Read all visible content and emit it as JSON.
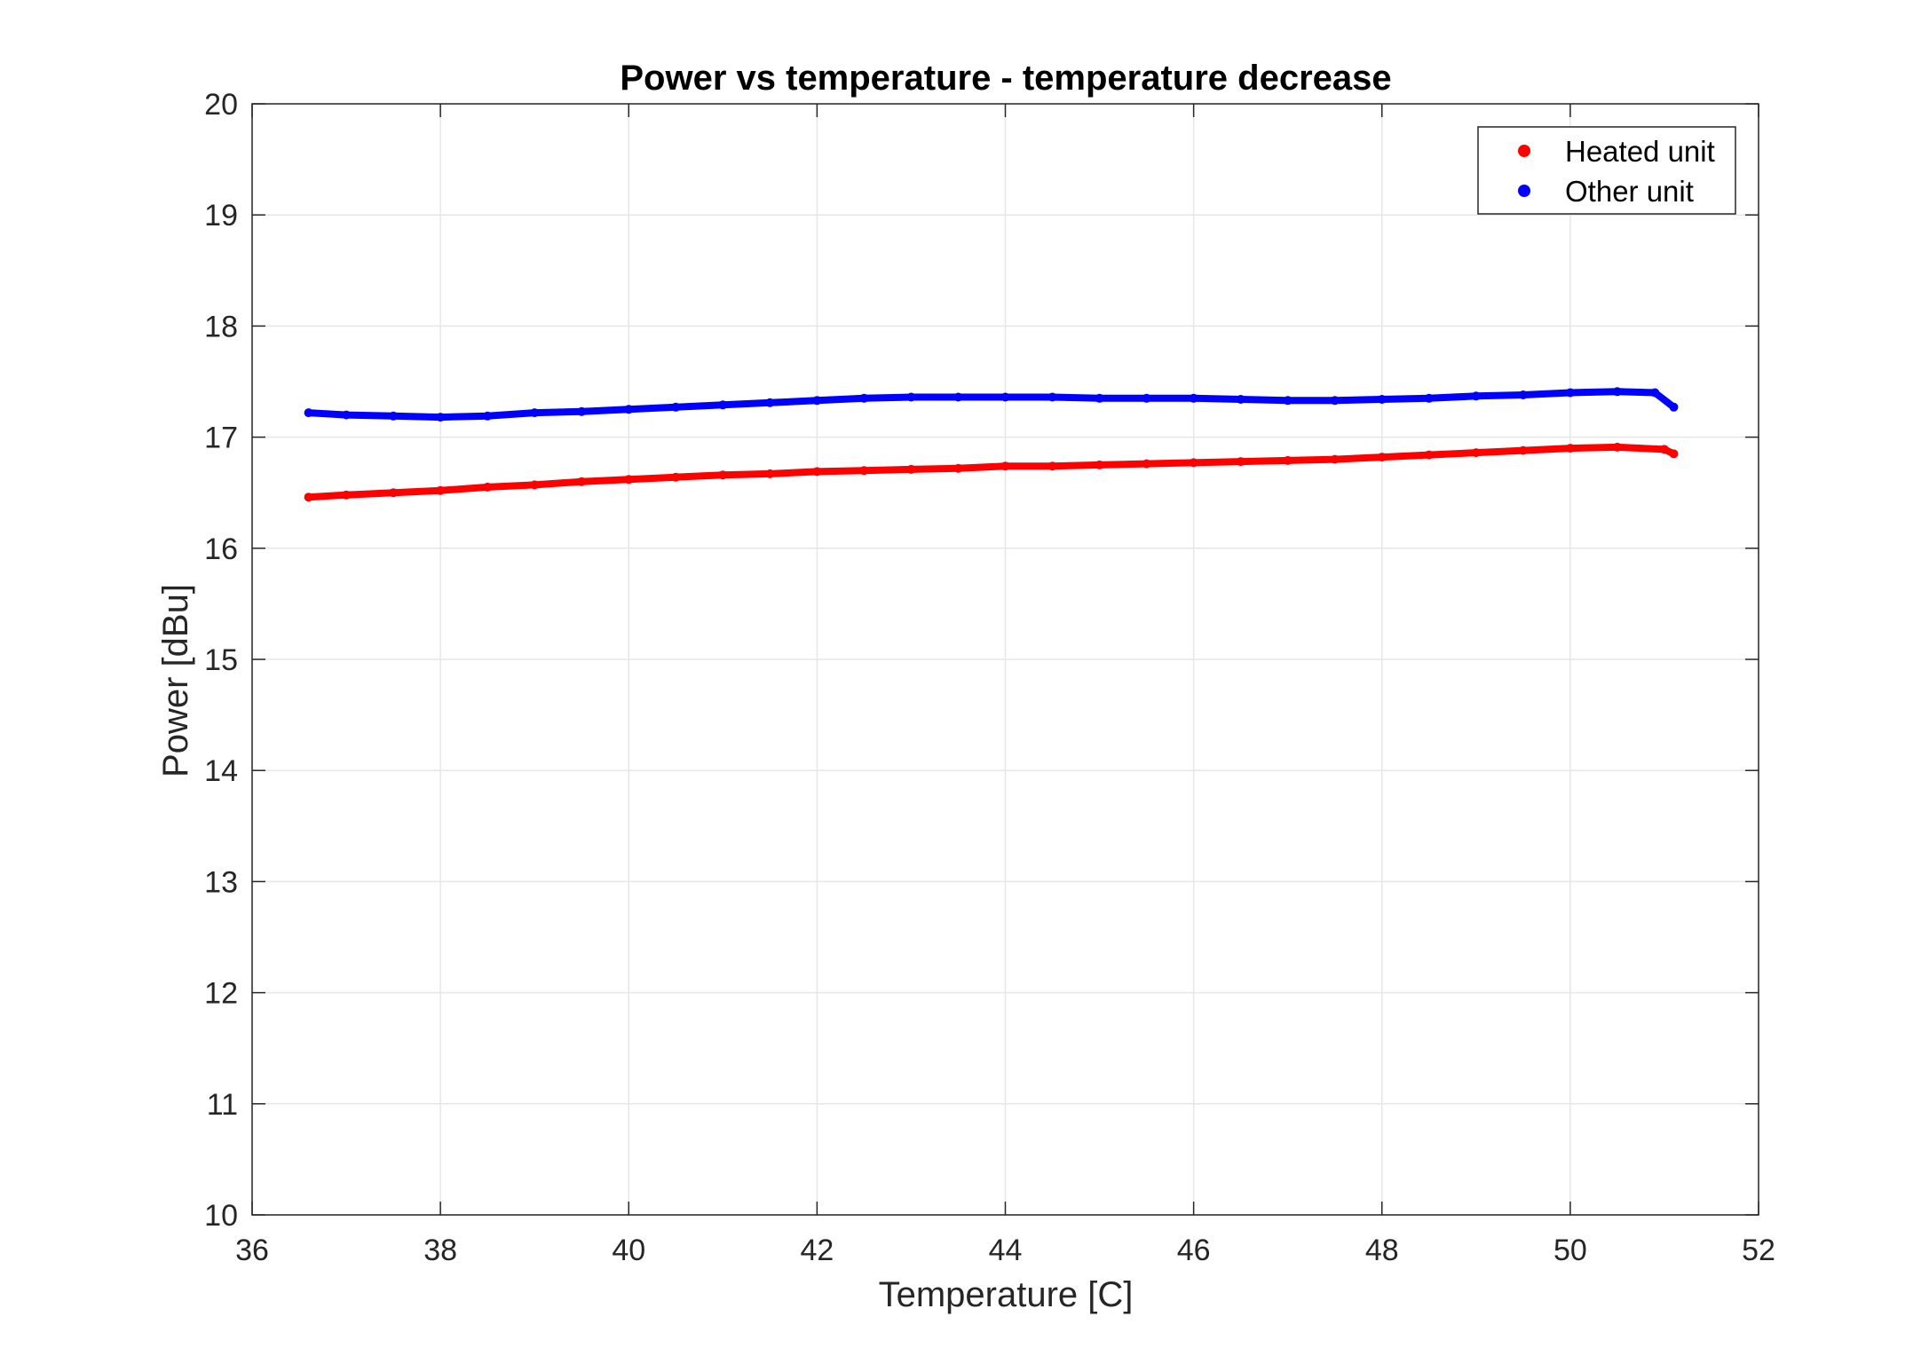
{
  "chart_data": {
    "type": "scatter",
    "title": "Power vs temperature - temperature decrease",
    "xlabel": "Temperature [C]",
    "ylabel": "Power [dBu]",
    "xlim": [
      36,
      52
    ],
    "ylim": [
      10,
      20
    ],
    "xticks": [
      "36",
      "38",
      "40",
      "42",
      "44",
      "46",
      "48",
      "50",
      "52"
    ],
    "yticks": [
      "10",
      "11",
      "12",
      "13",
      "14",
      "15",
      "16",
      "17",
      "18",
      "19",
      "20"
    ],
    "grid": true,
    "legend_position": "top-right",
    "series": [
      {
        "name": "Heated unit",
        "color": "#ff0000",
        "x": [
          36.6,
          37.0,
          37.5,
          38.0,
          38.5,
          39.0,
          39.5,
          40.0,
          40.5,
          41.0,
          41.5,
          42.0,
          42.5,
          43.0,
          43.5,
          44.0,
          44.5,
          45.0,
          45.5,
          46.0,
          46.5,
          47.0,
          47.5,
          48.0,
          48.5,
          49.0,
          49.5,
          50.0,
          50.5,
          51.0,
          51.1
        ],
        "y": [
          16.46,
          16.48,
          16.5,
          16.52,
          16.55,
          16.57,
          16.6,
          16.62,
          16.64,
          16.66,
          16.67,
          16.69,
          16.7,
          16.71,
          16.72,
          16.74,
          16.74,
          16.75,
          16.76,
          16.77,
          16.78,
          16.79,
          16.8,
          16.82,
          16.84,
          16.86,
          16.88,
          16.9,
          16.91,
          16.89,
          16.85
        ]
      },
      {
        "name": "Other unit",
        "color": "#0000ff",
        "x": [
          36.6,
          37.0,
          37.5,
          38.0,
          38.5,
          39.0,
          39.5,
          40.0,
          40.5,
          41.0,
          41.5,
          42.0,
          42.5,
          43.0,
          43.5,
          44.0,
          44.5,
          45.0,
          45.5,
          46.0,
          46.5,
          47.0,
          47.5,
          48.0,
          48.5,
          49.0,
          49.5,
          50.0,
          50.5,
          50.9,
          51.1
        ],
        "y": [
          17.22,
          17.2,
          17.19,
          17.18,
          17.19,
          17.22,
          17.23,
          17.25,
          17.27,
          17.29,
          17.31,
          17.33,
          17.35,
          17.36,
          17.36,
          17.36,
          17.36,
          17.35,
          17.35,
          17.35,
          17.34,
          17.33,
          17.33,
          17.34,
          17.35,
          17.37,
          17.38,
          17.4,
          17.41,
          17.4,
          17.27
        ]
      }
    ]
  }
}
